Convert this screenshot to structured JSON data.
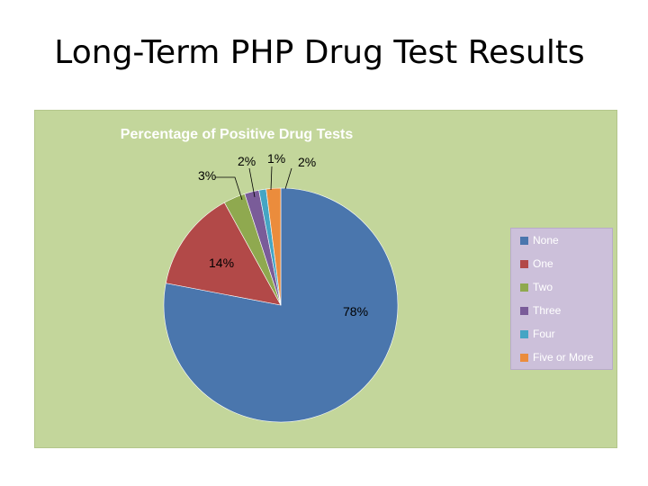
{
  "slide": {
    "title": "Long-Term PHP Drug Test Results"
  },
  "chart_data": {
    "type": "pie",
    "title": "Percentage of Positive Drug Tests",
    "categories": [
      "None",
      "One",
      "Two",
      "Three",
      "Four",
      "Five or More"
    ],
    "values": [
      78,
      14,
      3,
      2,
      1,
      2
    ],
    "labels": [
      "78%",
      "14%",
      "3%",
      "2%",
      "1%",
      "2%"
    ],
    "colors": [
      "#4a76ad",
      "#b24948",
      "#8fa94f",
      "#7a5c99",
      "#45a5c4",
      "#eb8c3c"
    ],
    "legend_position": "right",
    "background": "#c3d69b",
    "title_color": "#ffffff",
    "label_color": "#000000"
  }
}
